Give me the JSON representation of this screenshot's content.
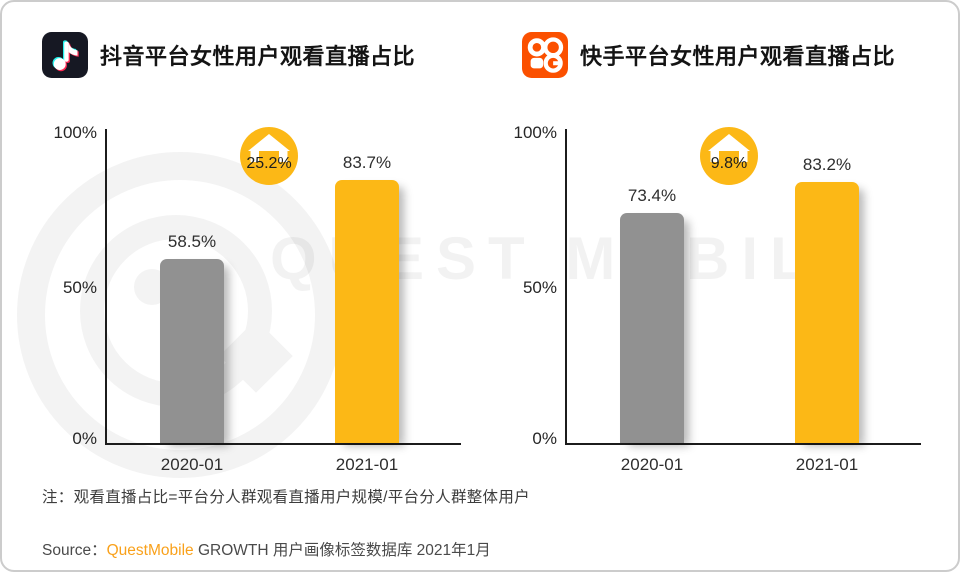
{
  "watermark": {
    "text": "QUEST MOBILE"
  },
  "chart_data": [
    {
      "type": "bar",
      "title": "抖音平台女性用户观看直播占比",
      "platform_icon": "douyin-logo",
      "categories": [
        "2020-01",
        "2021-01"
      ],
      "values": [
        58.5,
        83.7
      ],
      "value_labels": [
        "58.5%",
        "83.7%"
      ],
      "delta_badge": "25.2%",
      "yticks": [
        "100%",
        "50%",
        "0%"
      ],
      "ylim": [
        0,
        100
      ],
      "grid": false,
      "legend": "none",
      "bar_colors": [
        "#919191",
        "#FCB816"
      ]
    },
    {
      "type": "bar",
      "title": "快手平台女性用户观看直播占比",
      "platform_icon": "kuaishou-logo",
      "categories": [
        "2020-01",
        "2021-01"
      ],
      "values": [
        73.4,
        83.2
      ],
      "value_labels": [
        "73.4%",
        "83.2%"
      ],
      "delta_badge": "9.8%",
      "yticks": [
        "100%",
        "50%",
        "0%"
      ],
      "ylim": [
        0,
        100
      ],
      "grid": false,
      "legend": "none",
      "bar_colors": [
        "#919191",
        "#FCB816"
      ]
    }
  ],
  "footer": {
    "note": "注：观看直播占比=平台分人群观看直播用户规模/平台分人群整体用户",
    "source_prefix": "Source：",
    "source_brand": "QuestMobile",
    "source_suffix": " GROWTH 用户画像标签数据库 2021年1月"
  },
  "colors": {
    "bar_highlight": "#FCB816",
    "bar_base": "#919191",
    "badge_yellow": "#FCB816",
    "brand_orange": "#F9A11B",
    "douyin_black": "#161823",
    "kuaishou_orange": "#FB5000"
  }
}
